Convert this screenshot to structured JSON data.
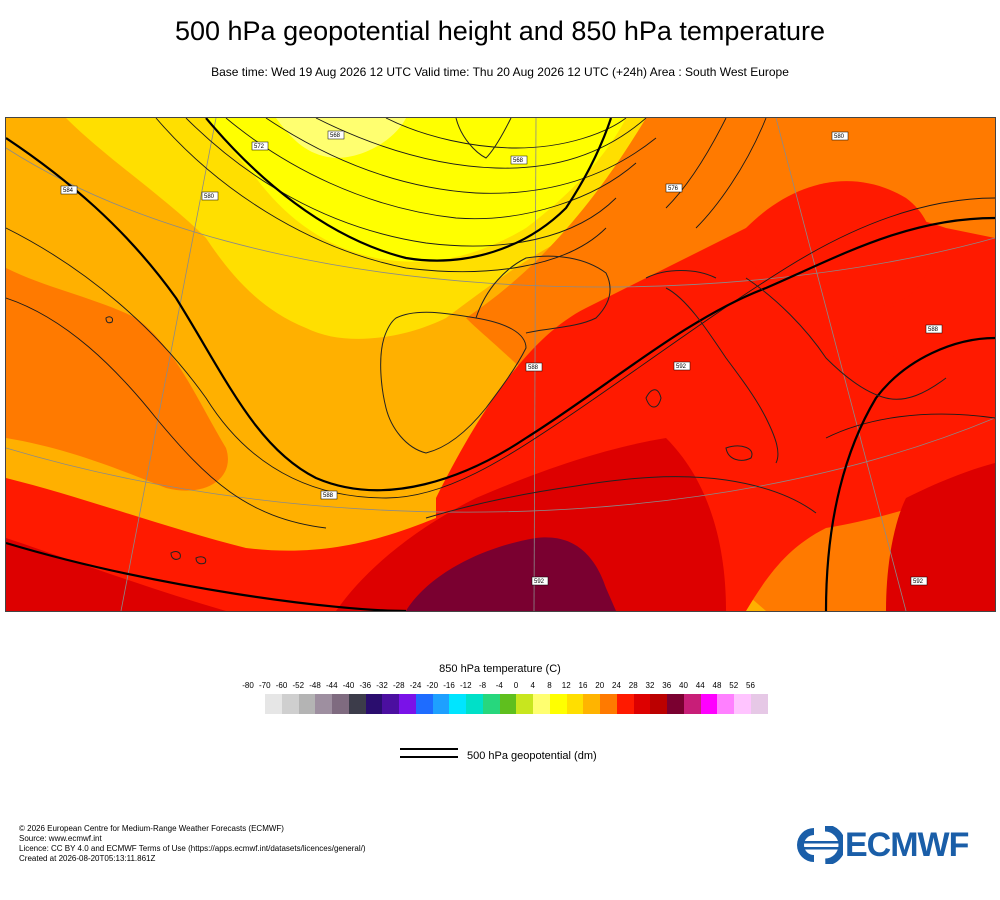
{
  "header": {
    "title": "500 hPa geopotential height and 850 hPa temperature",
    "subtitle": "Base time: Wed 19 Aug 2026 12 UTC Valid time: Thu 20 Aug 2026 12 UTC (+24h) Area : South West Europe"
  },
  "map": {
    "contour_labels": [
      "568",
      "572",
      "576",
      "580",
      "584",
      "588",
      "592"
    ]
  },
  "colorbar": {
    "title": "850 hPa temperature (C)",
    "ticks": [
      "-80",
      "-70",
      "-60",
      "-52",
      "-48",
      "-44",
      "-40",
      "-36",
      "-32",
      "-28",
      "-24",
      "-20",
      "-16",
      "-12",
      "-8",
      "-4",
      "0",
      "4",
      "8",
      "12",
      "16",
      "20",
      "24",
      "28",
      "32",
      "36",
      "40",
      "44",
      "48",
      "52",
      "56"
    ],
    "colors": [
      "#e6e6e6",
      "#cfcfcf",
      "#b4b4b4",
      "#9e8fa0",
      "#7f6b80",
      "#3c3c4a",
      "#2a0d6e",
      "#4b0fa0",
      "#7a12e8",
      "#1e6cff",
      "#1ea0ff",
      "#00e5ff",
      "#00e0c8",
      "#27d77d",
      "#5fbf1e",
      "#c8e61e",
      "#ffff70",
      "#ffff00",
      "#ffdf00",
      "#ffb400",
      "#ff7a00",
      "#ff1a00",
      "#dd0000",
      "#bb0000",
      "#7a0030",
      "#c81e78",
      "#ff00ff",
      "#ff80ff",
      "#ffc4ff",
      "#e6c8e6"
    ]
  },
  "legend": {
    "geopotential_label": "500 hPa geopotential (dm)"
  },
  "footer": {
    "line1": "© 2026 European Centre for Medium-Range Weather Forecasts (ECMWF)",
    "line2": "Source: www.ecmwf.int",
    "line3": "Licence: CC BY 4.0 and ECMWF Terms of Use (https://apps.ecmwf.int/datasets/licences/general/)",
    "line4": "Created at 2026-08-20T05:13:11.861Z"
  },
  "logo": {
    "text": "ECMWF",
    "color": "#1a5ea8"
  }
}
